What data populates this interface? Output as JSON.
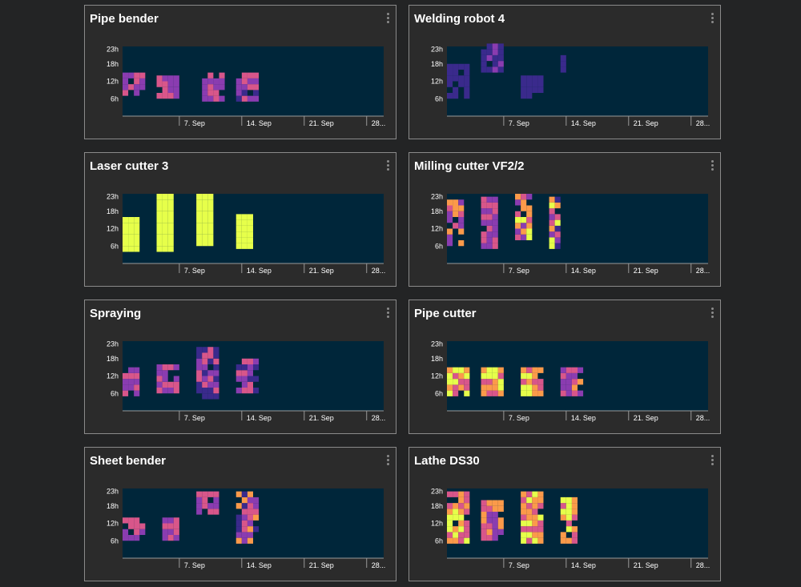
{
  "colors": {
    "background": "#232425",
    "panel": "#2b2b2b",
    "plot_area": "#00263a",
    "scale": [
      "#00263a",
      "#3a2a8c",
      "#8a3cb0",
      "#d8568a",
      "#fb9a4a",
      "#e6ff4a"
    ]
  },
  "panels": [
    {
      "title": "Pipe bender"
    },
    {
      "title": "Welding robot 4"
    },
    {
      "title": "Laser cutter 3"
    },
    {
      "title": "Milling cutter VF2/2"
    },
    {
      "title": "Spraying"
    },
    {
      "title": "Pipe cutter"
    },
    {
      "title": "Sheet bender"
    },
    {
      "title": "Lathe DS30"
    }
  ],
  "chart_data": [
    {
      "type": "heatmap",
      "title": "Pipe bender",
      "x_tick_labels": [
        "7. Sep",
        "14. Sep",
        "21. Sep",
        "28..."
      ],
      "y_tick_labels": [
        "23h",
        "18h",
        "12h",
        "6h"
      ],
      "ylim": [
        0,
        24
      ],
      "blocks": [
        {
          "days": [
            0,
            4
          ],
          "hours": [
            7,
            14
          ],
          "level": [
            2,
            3
          ]
        },
        {
          "days": [
            6,
            10
          ],
          "hours": [
            6,
            14
          ],
          "level": [
            2,
            3
          ]
        },
        {
          "days": [
            14,
            18
          ],
          "hours": [
            5,
            14
          ],
          "level": [
            2,
            3
          ]
        },
        {
          "days": [
            20,
            24
          ],
          "hours": [
            5,
            14
          ],
          "level": [
            1,
            3
          ]
        }
      ]
    },
    {
      "type": "heatmap",
      "title": "Welding robot 4",
      "x_tick_labels": [
        "7. Sep",
        "14. Sep",
        "21. Sep",
        "28..."
      ],
      "y_tick_labels": [
        "23h",
        "18h",
        "12h",
        "6h"
      ],
      "ylim": [
        0,
        24
      ],
      "blocks": [
        {
          "days": [
            0,
            4
          ],
          "hours": [
            6,
            17
          ],
          "level": [
            1,
            1
          ]
        },
        {
          "days": [
            6,
            10
          ],
          "hours": [
            15,
            24
          ],
          "level": [
            1,
            2
          ]
        },
        {
          "days": [
            13,
            17
          ],
          "hours": [
            6,
            14
          ],
          "level": [
            1,
            1
          ]
        },
        {
          "days": [
            20,
            21
          ],
          "hours": [
            15,
            22
          ],
          "level": [
            1,
            1
          ]
        }
      ]
    },
    {
      "type": "heatmap",
      "title": "Laser cutter 3",
      "x_tick_labels": [
        "7. Sep",
        "14. Sep",
        "21. Sep",
        "28..."
      ],
      "y_tick_labels": [
        "23h",
        "18h",
        "12h",
        "6h"
      ],
      "ylim": [
        0,
        24
      ],
      "blocks": [
        {
          "days": [
            0,
            3
          ],
          "hours": [
            4,
            15
          ],
          "level": [
            5,
            5
          ]
        },
        {
          "days": [
            6,
            9
          ],
          "hours": [
            4,
            24
          ],
          "level": [
            5,
            5
          ]
        },
        {
          "days": [
            13,
            16
          ],
          "hours": [
            6,
            23
          ],
          "level": [
            5,
            5
          ]
        },
        {
          "days": [
            20,
            23
          ],
          "hours": [
            5,
            17
          ],
          "level": [
            5,
            5
          ]
        }
      ]
    },
    {
      "type": "heatmap",
      "title": "Milling cutter VF2/2",
      "x_tick_labels": [
        "7. Sep",
        "14. Sep",
        "21. Sep",
        "28..."
      ],
      "y_tick_labels": [
        "23h",
        "18h",
        "12h",
        "6h"
      ],
      "ylim": [
        0,
        24
      ],
      "blocks": [
        {
          "days": [
            0,
            3
          ],
          "hours": [
            6,
            22
          ],
          "level": [
            2,
            4
          ]
        },
        {
          "days": [
            6,
            9
          ],
          "hours": [
            5,
            22
          ],
          "level": [
            2,
            3
          ]
        },
        {
          "days": [
            12,
            15
          ],
          "hours": [
            8,
            23
          ],
          "level": [
            2,
            5
          ]
        },
        {
          "days": [
            18,
            20
          ],
          "hours": [
            5,
            22
          ],
          "level": [
            1,
            5
          ]
        }
      ]
    },
    {
      "type": "heatmap",
      "title": "Spraying",
      "x_tick_labels": [
        "7. Sep",
        "14. Sep",
        "21. Sep",
        "28..."
      ],
      "y_tick_labels": [
        "23h",
        "18h",
        "12h",
        "6h"
      ],
      "ylim": [
        0,
        24
      ],
      "blocks": [
        {
          "days": [
            0,
            3
          ],
          "hours": [
            5,
            15
          ],
          "level": [
            2,
            3
          ]
        },
        {
          "days": [
            6,
            10
          ],
          "hours": [
            6,
            15
          ],
          "level": [
            2,
            3
          ]
        },
        {
          "days": [
            13,
            17
          ],
          "hours": [
            4,
            22
          ],
          "level": [
            1,
            3
          ]
        },
        {
          "days": [
            20,
            24
          ],
          "hours": [
            6,
            18
          ],
          "level": [
            1,
            3
          ]
        }
      ]
    },
    {
      "type": "heatmap",
      "title": "Pipe cutter",
      "x_tick_labels": [
        "7. Sep",
        "14. Sep",
        "21. Sep",
        "28..."
      ],
      "y_tick_labels": [
        "23h",
        "18h",
        "12h",
        "6h"
      ],
      "ylim": [
        0,
        24
      ],
      "blocks": [
        {
          "days": [
            0,
            4
          ],
          "hours": [
            5,
            14
          ],
          "level": [
            3,
            5
          ]
        },
        {
          "days": [
            6,
            10
          ],
          "hours": [
            5,
            14
          ],
          "level": [
            3,
            5
          ]
        },
        {
          "days": [
            13,
            17
          ],
          "hours": [
            5,
            14
          ],
          "level": [
            3,
            5
          ]
        },
        {
          "days": [
            20,
            24
          ],
          "hours": [
            5,
            14
          ],
          "level": [
            2,
            4
          ]
        }
      ]
    },
    {
      "type": "heatmap",
      "title": "Sheet bender",
      "x_tick_labels": [
        "7. Sep",
        "14. Sep",
        "21. Sep",
        "28..."
      ],
      "y_tick_labels": [
        "23h",
        "18h",
        "12h",
        "6h"
      ],
      "ylim": [
        0,
        24
      ],
      "blocks": [
        {
          "days": [
            0,
            4
          ],
          "hours": [
            6,
            14
          ],
          "level": [
            2,
            3
          ]
        },
        {
          "days": [
            7,
            10
          ],
          "hours": [
            6,
            13
          ],
          "level": [
            2,
            3
          ]
        },
        {
          "days": [
            13,
            17
          ],
          "hours": [
            15,
            22
          ],
          "level": [
            2,
            3
          ]
        },
        {
          "days": [
            20,
            24
          ],
          "hours": [
            5,
            22
          ],
          "level": [
            1,
            4
          ]
        }
      ]
    },
    {
      "type": "heatmap",
      "title": "Lathe DS30",
      "x_tick_labels": [
        "7. Sep",
        "14. Sep",
        "21. Sep",
        "28..."
      ],
      "y_tick_labels": [
        "23h",
        "18h",
        "12h",
        "6h"
      ],
      "ylim": [
        0,
        24
      ],
      "blocks": [
        {
          "days": [
            0,
            4
          ],
          "hours": [
            5,
            22
          ],
          "level": [
            3,
            5
          ]
        },
        {
          "days": [
            6,
            10
          ],
          "hours": [
            6,
            20
          ],
          "level": [
            2,
            4
          ]
        },
        {
          "days": [
            13,
            17
          ],
          "hours": [
            5,
            22
          ],
          "level": [
            3,
            5
          ]
        },
        {
          "days": [
            20,
            23
          ],
          "hours": [
            5,
            21
          ],
          "level": [
            3,
            5
          ]
        }
      ]
    }
  ]
}
